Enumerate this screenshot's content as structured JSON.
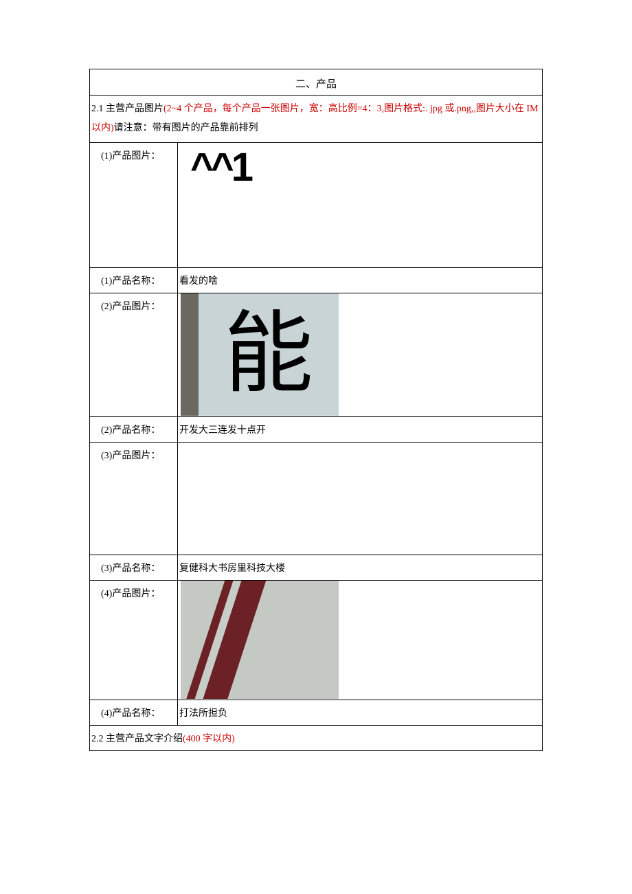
{
  "header": {
    "title": "二、产品"
  },
  "section21": {
    "prefix": "2.1 主营产品图片",
    "red1": "(2~4 个产品，每个产品一张图片，宽：高比例=4：3,图片格式:. jpg 或.png,,图片大小在 IM 以内)",
    "black_mid": "请注意：带有图片的产品靠前排列"
  },
  "products": [
    {
      "img_label": "(1)产品图片：",
      "name_label": "(1)产品名称：",
      "name_value": "看发的啥",
      "img_text": "^^1"
    },
    {
      "img_label": "(2)产品图片：",
      "name_label": "(2)产品名称：",
      "name_value": "开发大三连发十点开",
      "img_char": "能"
    },
    {
      "img_label": "(3)产品图片：",
      "name_label": "(3)产品名称：",
      "name_value": "复健科大书房里科技大楼"
    },
    {
      "img_label": "(4)产品图片：",
      "name_label": "(4)产品名称：",
      "name_value": "打法所担负"
    }
  ],
  "section22": {
    "prefix": "2.2 主营产品文字介绍",
    "red": "(400 字以内)"
  },
  "colors": {
    "border": "#000000",
    "text_black": "#000000",
    "text_red": "#cc0000",
    "img2_bg": "#c8d4d6",
    "img2_border": "#6b6860",
    "img4_bg": "#c4c9c3",
    "img4_stroke": "#6b2125"
  }
}
